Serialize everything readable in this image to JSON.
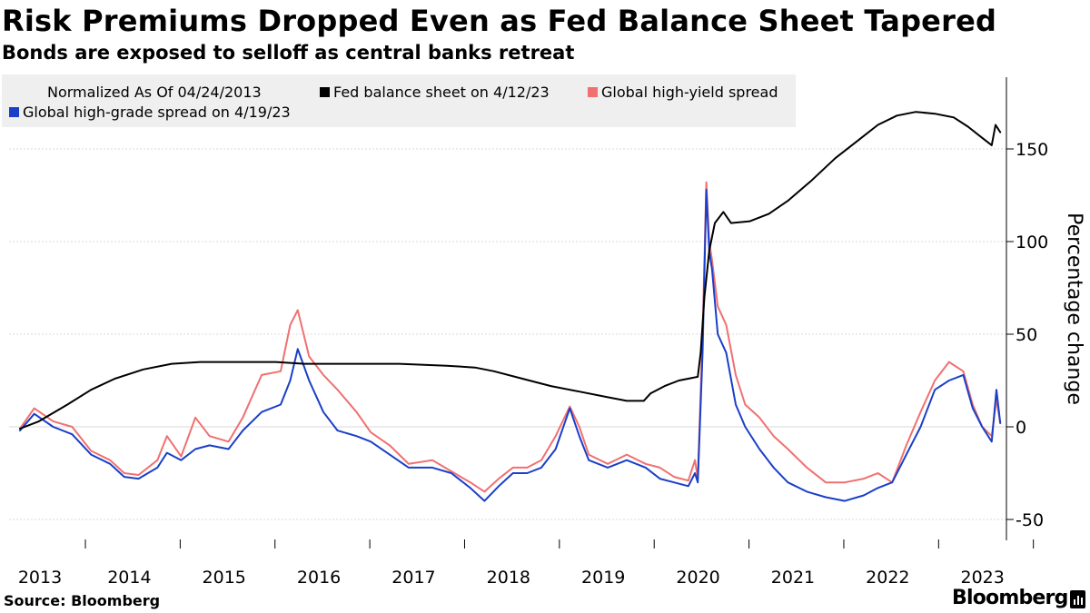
{
  "title": "Risk Premiums Dropped Even as Fed Balance Sheet Tapered",
  "subtitle": "Bonds are exposed to selloff as central banks retreat",
  "legend": {
    "note": "Normalized As Of 04/24/2013",
    "items": [
      {
        "label": "Fed balance sheet on 4/12/23",
        "color": "#000000"
      },
      {
        "label": "Global high-yield spread",
        "color": "#f07070"
      },
      {
        "label": "Global high-grade spread on 4/19/23",
        "color": "#1a3fc8"
      }
    ]
  },
  "source": "Source: Bloomberg",
  "brand": "Bloomberg",
  "chart_data": {
    "type": "line",
    "title": "Risk Premiums Dropped Even as Fed Balance Sheet Tapered",
    "xlabel": "",
    "ylabel": "Percentage change",
    "y_axis_side": "right",
    "ylim": [
      -50,
      185
    ],
    "yticks": [
      -50,
      0,
      50,
      100,
      150
    ],
    "xlim": [
      2013.0,
      2023.3
    ],
    "xticks": [
      {
        "value": 2013.0,
        "label": "2013"
      },
      {
        "value": 2014.0,
        "label": "2014"
      },
      {
        "value": 2015.0,
        "label": "2015"
      },
      {
        "value": 2016.0,
        "label": "2016"
      },
      {
        "value": 2017.0,
        "label": "2017"
      },
      {
        "value": 2018.0,
        "label": "2018"
      },
      {
        "value": 2019.0,
        "label": "2019"
      },
      {
        "value": 2020.0,
        "label": "2020"
      },
      {
        "value": 2021.0,
        "label": "2021"
      },
      {
        "value": 2022.0,
        "label": "2022"
      },
      {
        "value": 2023.0,
        "label": "2023"
      }
    ],
    "grid": "horizontal",
    "legend_position": "top-left",
    "series": [
      {
        "name": "Fed balance sheet on 4/12/23",
        "color": "#000000",
        "points": [
          [
            2013.0,
            -1
          ],
          [
            2013.2,
            3
          ],
          [
            2013.5,
            12
          ],
          [
            2013.75,
            20
          ],
          [
            2014.0,
            26
          ],
          [
            2014.3,
            31
          ],
          [
            2014.6,
            34
          ],
          [
            2014.9,
            35
          ],
          [
            2015.3,
            35
          ],
          [
            2015.7,
            35
          ],
          [
            2016.0,
            34
          ],
          [
            2016.5,
            34
          ],
          [
            2017.0,
            34
          ],
          [
            2017.5,
            33
          ],
          [
            2017.8,
            32
          ],
          [
            2018.0,
            30
          ],
          [
            2018.3,
            26
          ],
          [
            2018.6,
            22
          ],
          [
            2018.9,
            19
          ],
          [
            2019.2,
            16
          ],
          [
            2019.4,
            14
          ],
          [
            2019.58,
            14
          ],
          [
            2019.65,
            18
          ],
          [
            2019.8,
            22
          ],
          [
            2019.95,
            25
          ],
          [
            2020.15,
            27
          ],
          [
            2020.18,
            40
          ],
          [
            2020.22,
            70
          ],
          [
            2020.27,
            95
          ],
          [
            2020.33,
            110
          ],
          [
            2020.42,
            116
          ],
          [
            2020.5,
            110
          ],
          [
            2020.7,
            111
          ],
          [
            2020.9,
            115
          ],
          [
            2021.1,
            122
          ],
          [
            2021.35,
            133
          ],
          [
            2021.6,
            145
          ],
          [
            2021.85,
            155
          ],
          [
            2022.05,
            163
          ],
          [
            2022.25,
            168
          ],
          [
            2022.45,
            170
          ],
          [
            2022.65,
            169
          ],
          [
            2022.85,
            167
          ],
          [
            2023.0,
            162
          ],
          [
            2023.15,
            156
          ],
          [
            2023.25,
            152
          ],
          [
            2023.29,
            163
          ],
          [
            2023.34,
            159
          ]
        ]
      },
      {
        "name": "Global high-yield spread",
        "color": "#f07070",
        "points": [
          [
            2013.0,
            -1
          ],
          [
            2013.15,
            10
          ],
          [
            2013.35,
            3
          ],
          [
            2013.55,
            0
          ],
          [
            2013.75,
            -13
          ],
          [
            2013.95,
            -18
          ],
          [
            2014.1,
            -25
          ],
          [
            2014.25,
            -26
          ],
          [
            2014.45,
            -18
          ],
          [
            2014.55,
            -5
          ],
          [
            2014.7,
            -16
          ],
          [
            2014.85,
            5
          ],
          [
            2015.0,
            -5
          ],
          [
            2015.2,
            -8
          ],
          [
            2015.35,
            5
          ],
          [
            2015.55,
            28
          ],
          [
            2015.75,
            30
          ],
          [
            2015.85,
            55
          ],
          [
            2015.93,
            63
          ],
          [
            2016.05,
            38
          ],
          [
            2016.2,
            28
          ],
          [
            2016.35,
            20
          ],
          [
            2016.55,
            8
          ],
          [
            2016.7,
            -3
          ],
          [
            2016.9,
            -10
          ],
          [
            2017.1,
            -20
          ],
          [
            2017.35,
            -18
          ],
          [
            2017.55,
            -24
          ],
          [
            2017.75,
            -30
          ],
          [
            2017.9,
            -35
          ],
          [
            2018.05,
            -28
          ],
          [
            2018.2,
            -22
          ],
          [
            2018.35,
            -22
          ],
          [
            2018.5,
            -18
          ],
          [
            2018.65,
            -5
          ],
          [
            2018.8,
            11
          ],
          [
            2018.9,
            0
          ],
          [
            2019.0,
            -15
          ],
          [
            2019.2,
            -20
          ],
          [
            2019.4,
            -15
          ],
          [
            2019.6,
            -20
          ],
          [
            2019.75,
            -22
          ],
          [
            2019.9,
            -27
          ],
          [
            2020.05,
            -29
          ],
          [
            2020.12,
            -18
          ],
          [
            2020.15,
            -28
          ],
          [
            2020.2,
            50
          ],
          [
            2020.24,
            132
          ],
          [
            2020.27,
            100
          ],
          [
            2020.3,
            90
          ],
          [
            2020.36,
            65
          ],
          [
            2020.45,
            55
          ],
          [
            2020.55,
            28
          ],
          [
            2020.65,
            12
          ],
          [
            2020.8,
            5
          ],
          [
            2020.95,
            -5
          ],
          [
            2021.1,
            -12
          ],
          [
            2021.3,
            -22
          ],
          [
            2021.5,
            -30
          ],
          [
            2021.7,
            -30
          ],
          [
            2021.9,
            -28
          ],
          [
            2022.05,
            -25
          ],
          [
            2022.2,
            -30
          ],
          [
            2022.35,
            -10
          ],
          [
            2022.5,
            8
          ],
          [
            2022.65,
            25
          ],
          [
            2022.8,
            35
          ],
          [
            2022.95,
            30
          ],
          [
            2023.05,
            12
          ],
          [
            2023.15,
            0
          ],
          [
            2023.25,
            -5
          ],
          [
            2023.3,
            15
          ],
          [
            2023.34,
            2
          ]
        ]
      },
      {
        "name": "Global high-grade spread on 4/19/23",
        "color": "#1a3fc8",
        "points": [
          [
            2013.0,
            -2
          ],
          [
            2013.15,
            7
          ],
          [
            2013.35,
            0
          ],
          [
            2013.55,
            -4
          ],
          [
            2013.75,
            -15
          ],
          [
            2013.95,
            -20
          ],
          [
            2014.1,
            -27
          ],
          [
            2014.25,
            -28
          ],
          [
            2014.45,
            -22
          ],
          [
            2014.55,
            -14
          ],
          [
            2014.7,
            -18
          ],
          [
            2014.85,
            -12
          ],
          [
            2015.0,
            -10
          ],
          [
            2015.2,
            -12
          ],
          [
            2015.35,
            -2
          ],
          [
            2015.55,
            8
          ],
          [
            2015.75,
            12
          ],
          [
            2015.85,
            25
          ],
          [
            2015.93,
            42
          ],
          [
            2016.05,
            25
          ],
          [
            2016.2,
            8
          ],
          [
            2016.35,
            -2
          ],
          [
            2016.55,
            -5
          ],
          [
            2016.7,
            -8
          ],
          [
            2016.9,
            -15
          ],
          [
            2017.1,
            -22
          ],
          [
            2017.35,
            -22
          ],
          [
            2017.55,
            -25
          ],
          [
            2017.75,
            -33
          ],
          [
            2017.9,
            -40
          ],
          [
            2018.05,
            -32
          ],
          [
            2018.2,
            -25
          ],
          [
            2018.35,
            -25
          ],
          [
            2018.5,
            -22
          ],
          [
            2018.65,
            -12
          ],
          [
            2018.8,
            10
          ],
          [
            2018.9,
            -5
          ],
          [
            2019.0,
            -18
          ],
          [
            2019.2,
            -22
          ],
          [
            2019.4,
            -18
          ],
          [
            2019.6,
            -22
          ],
          [
            2019.75,
            -28
          ],
          [
            2019.9,
            -30
          ],
          [
            2020.05,
            -32
          ],
          [
            2020.12,
            -25
          ],
          [
            2020.15,
            -30
          ],
          [
            2020.2,
            40
          ],
          [
            2020.24,
            128
          ],
          [
            2020.27,
            95
          ],
          [
            2020.3,
            85
          ],
          [
            2020.36,
            50
          ],
          [
            2020.45,
            40
          ],
          [
            2020.55,
            12
          ],
          [
            2020.65,
            0
          ],
          [
            2020.8,
            -12
          ],
          [
            2020.95,
            -22
          ],
          [
            2021.1,
            -30
          ],
          [
            2021.3,
            -35
          ],
          [
            2021.5,
            -38
          ],
          [
            2021.7,
            -40
          ],
          [
            2021.9,
            -37
          ],
          [
            2022.05,
            -33
          ],
          [
            2022.2,
            -30
          ],
          [
            2022.35,
            -15
          ],
          [
            2022.5,
            0
          ],
          [
            2022.65,
            20
          ],
          [
            2022.8,
            25
          ],
          [
            2022.95,
            28
          ],
          [
            2023.05,
            10
          ],
          [
            2023.15,
            0
          ],
          [
            2023.25,
            -8
          ],
          [
            2023.3,
            20
          ],
          [
            2023.34,
            2
          ]
        ]
      }
    ]
  }
}
